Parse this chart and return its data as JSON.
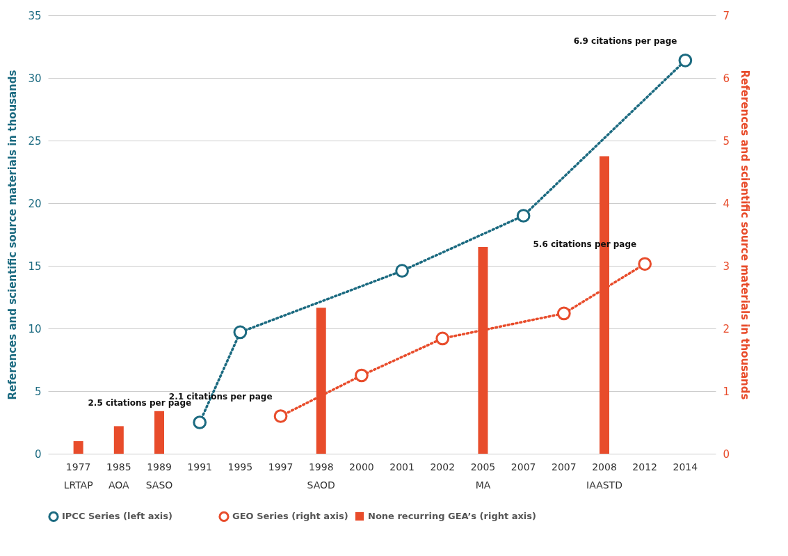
{
  "chart_data": {
    "type": "line",
    "ylabel": "References and scientific source materials in thousands",
    "y2label": "References and scientific source materials in thousands",
    "categories": [
      "1977\nLRTAP",
      "1985\nAOA",
      "1989\nSASO",
      "1991",
      "1995",
      "1997",
      "1998\nSAOD",
      "2000",
      "2001",
      "2002",
      "2005\nMA",
      "2007",
      "2007",
      "2008\nIAASTD",
      "2012",
      "2014"
    ],
    "series": [
      {
        "name": "IPCC Series (left axis)",
        "axis": "y",
        "color": "#1b6a80",
        "values": [
          null,
          null,
          null,
          2.5,
          9.7,
          null,
          null,
          null,
          14.6,
          null,
          null,
          19.0,
          null,
          null,
          null,
          31.4
        ]
      },
      {
        "name": "GEO Series (right axis)",
        "axis": "y2",
        "color": "#e84c2b",
        "values": [
          null,
          null,
          null,
          null,
          null,
          0.6,
          null,
          1.25,
          null,
          1.84,
          null,
          null,
          2.24,
          null,
          3.03,
          null
        ]
      },
      {
        "name": "None recurring GEA’s (right axis)",
        "type": "bar",
        "axis": "y2",
        "color": "#e84c2b",
        "values": [
          0.2,
          0.44,
          0.68,
          null,
          null,
          null,
          2.33,
          null,
          null,
          null,
          3.3,
          null,
          null,
          4.75,
          null,
          null
        ]
      }
    ],
    "ylim": [
      0,
      35
    ],
    "yticks": [
      0,
      5,
      10,
      15,
      20,
      25,
      30,
      35
    ],
    "y2lim": [
      0,
      7
    ],
    "y2ticks": [
      0,
      1,
      2,
      3,
      4,
      5,
      6,
      7
    ],
    "grid": "y",
    "legend": "bottom",
    "marker": "circle",
    "line_style": "dotted",
    "annotations": [
      {
        "text": "2.5 citations per page",
        "x": "1991",
        "y": 2.5
      },
      {
        "text": "2.1 citations per page",
        "x": "1997",
        "y": 3
      },
      {
        "text": "5.6 citations per page",
        "x": "2012",
        "y": 15.15
      },
      {
        "text": "6.9 citations per page",
        "x": "2014",
        "y": 31.4
      }
    ]
  }
}
